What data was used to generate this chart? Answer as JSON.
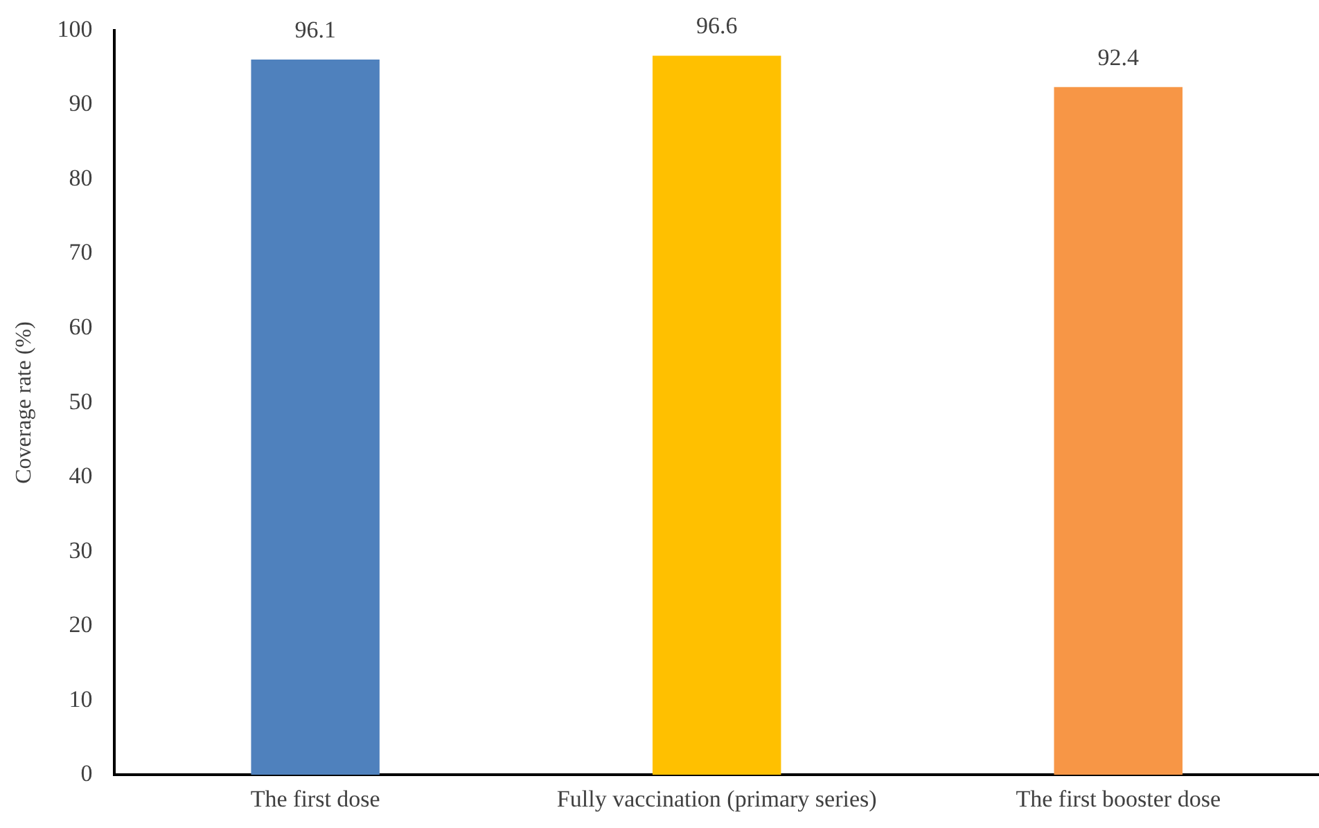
{
  "chart_data": {
    "type": "bar",
    "ylabel": "Coverage rate (%)",
    "categories": [
      "The first dose",
      "Fully vaccination (primary series)",
      "The first booster dose"
    ],
    "values": [
      96.1,
      96.6,
      92.4
    ],
    "colors": [
      "#4f81bd",
      "#ffc000",
      "#f79646"
    ],
    "ylim": [
      0,
      100
    ],
    "yticks": [
      0,
      10,
      20,
      30,
      40,
      50,
      60,
      70,
      80,
      90,
      100
    ],
    "grid": false,
    "legend": false,
    "data_labels": true
  }
}
